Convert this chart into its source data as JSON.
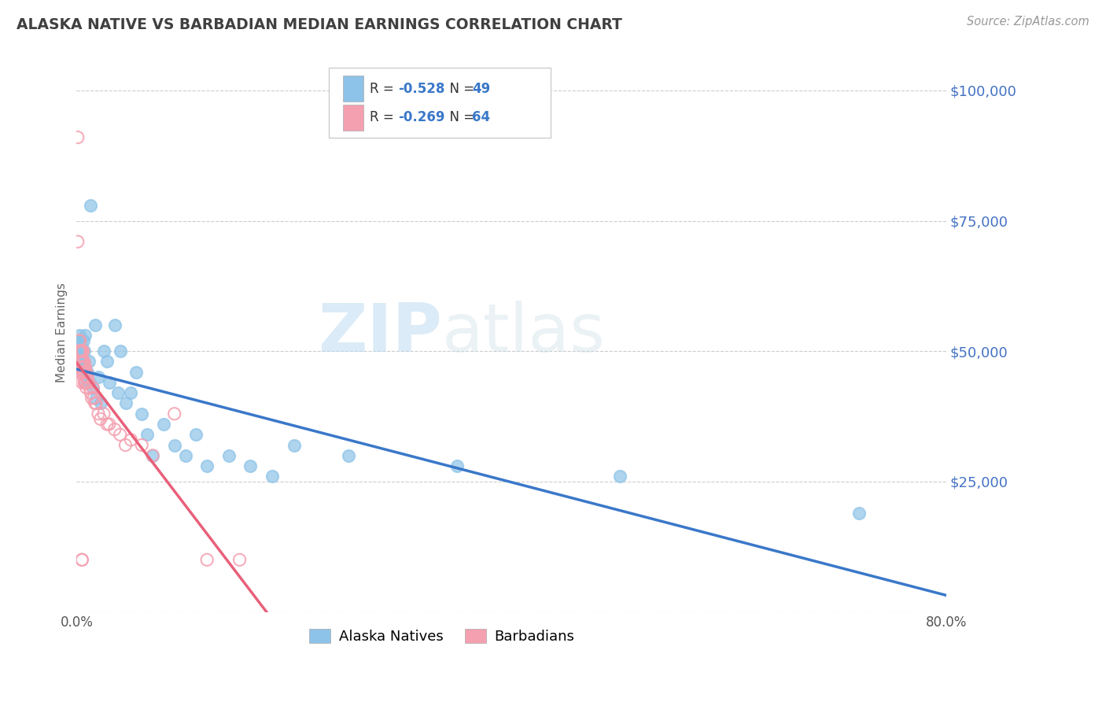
{
  "title": "ALASKA NATIVE VS BARBADIAN MEDIAN EARNINGS CORRELATION CHART",
  "source": "Source: ZipAtlas.com",
  "ylabel": "Median Earnings",
  "watermark_zip": "ZIP",
  "watermark_atlas": "atlas",
  "xlim": [
    0.0,
    0.8
  ],
  "ylim": [
    0,
    107000
  ],
  "yticks": [
    0,
    25000,
    50000,
    75000,
    100000
  ],
  "ytick_labels": [
    "",
    "$25,000",
    "$50,000",
    "$75,000",
    "$100,000"
  ],
  "xticks": [
    0.0,
    0.1,
    0.2,
    0.3,
    0.4,
    0.5,
    0.6,
    0.7,
    0.8
  ],
  "xtick_labels": [
    "0.0%",
    "",
    "",
    "",
    "",
    "",
    "",
    "",
    "80.0%"
  ],
  "legend_label1": "Alaska Natives",
  "legend_label2": "Barbadians",
  "R1": -0.528,
  "N1": 49,
  "R2": -0.269,
  "N2": 64,
  "color1": "#8dc3e8",
  "color2": "#f4a0b0",
  "trend1_color": "#3a78c9",
  "trend2_color": "#e8607a",
  "trend2_dash_color": "#e8b0bc",
  "alaska_x": [
    0.001,
    0.002,
    0.002,
    0.003,
    0.003,
    0.004,
    0.004,
    0.005,
    0.005,
    0.006,
    0.006,
    0.007,
    0.008,
    0.008,
    0.009,
    0.01,
    0.011,
    0.012,
    0.013,
    0.015,
    0.017,
    0.018,
    0.02,
    0.022,
    0.025,
    0.028,
    0.03,
    0.035,
    0.038,
    0.04,
    0.045,
    0.05,
    0.055,
    0.06,
    0.065,
    0.07,
    0.08,
    0.09,
    0.1,
    0.11,
    0.12,
    0.14,
    0.16,
    0.18,
    0.2,
    0.25,
    0.35,
    0.5,
    0.72
  ],
  "alaska_y": [
    47000,
    50000,
    48000,
    52000,
    53000,
    51000,
    49000,
    50000,
    47000,
    48000,
    52000,
    50000,
    53000,
    46000,
    44000,
    46000,
    48000,
    44000,
    78000,
    43000,
    55000,
    41000,
    45000,
    40000,
    50000,
    48000,
    44000,
    55000,
    42000,
    50000,
    40000,
    42000,
    46000,
    38000,
    34000,
    30000,
    36000,
    32000,
    30000,
    34000,
    28000,
    30000,
    28000,
    26000,
    32000,
    30000,
    28000,
    26000,
    19000
  ],
  "barbadian_x": [
    0.001,
    0.001,
    0.002,
    0.002,
    0.002,
    0.002,
    0.003,
    0.003,
    0.003,
    0.003,
    0.003,
    0.004,
    0.004,
    0.004,
    0.004,
    0.004,
    0.005,
    0.005,
    0.005,
    0.005,
    0.005,
    0.005,
    0.005,
    0.006,
    0.006,
    0.006,
    0.006,
    0.007,
    0.007,
    0.007,
    0.007,
    0.008,
    0.008,
    0.008,
    0.008,
    0.009,
    0.009,
    0.009,
    0.01,
    0.01,
    0.011,
    0.012,
    0.013,
    0.014,
    0.015,
    0.016,
    0.017,
    0.018,
    0.02,
    0.022,
    0.025,
    0.028,
    0.03,
    0.035,
    0.04,
    0.045,
    0.05,
    0.06,
    0.07,
    0.09,
    0.12,
    0.15,
    0.005,
    0.005
  ],
  "barbadian_y": [
    91000,
    71000,
    52000,
    50000,
    50000,
    47000,
    52000,
    50000,
    48000,
    48000,
    46000,
    50000,
    50000,
    48000,
    48000,
    46000,
    50000,
    50000,
    48000,
    48000,
    47000,
    46000,
    44000,
    50000,
    48000,
    46000,
    46000,
    48000,
    47000,
    46000,
    44000,
    47000,
    46000,
    44000,
    44000,
    46000,
    45000,
    43000,
    45000,
    44000,
    44000,
    43000,
    42000,
    41000,
    43000,
    41000,
    40000,
    40000,
    38000,
    37000,
    38000,
    36000,
    36000,
    35000,
    34000,
    32000,
    33000,
    32000,
    30000,
    38000,
    10000,
    10000,
    10000,
    10000
  ]
}
